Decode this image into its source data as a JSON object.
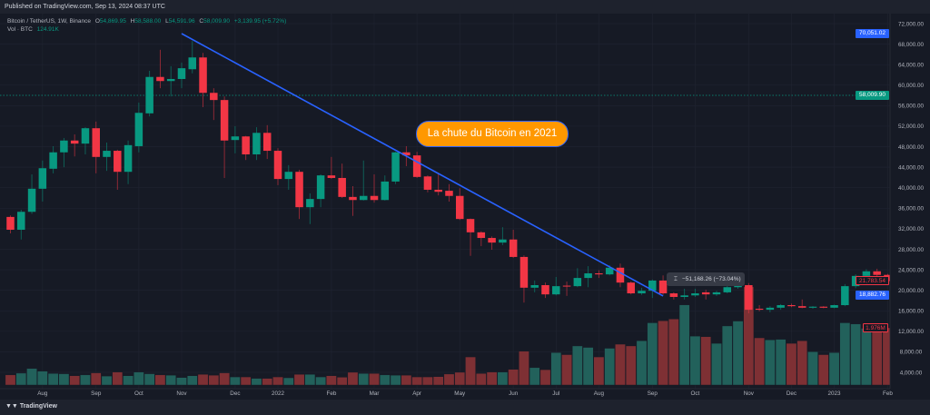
{
  "header": {
    "published": "Published on TradingView.com, Sep 13, 2024 08:37 UTC"
  },
  "legend": {
    "symbol": "Bitcoin / TetherUS, 1W, Binance",
    "o_label": "O",
    "o": "54,869.95",
    "h_label": "H",
    "h": "58,588.00",
    "l_label": "L",
    "l": "54,591.96",
    "c_label": "C",
    "c": "58,009.90",
    "change": "+3,139.95 (+5.72%)",
    "vol_label": "Vol · BTC",
    "vol": "124.91K"
  },
  "annotation": {
    "text": "La chute du Bitcoin en 2021",
    "fill": "#ff9800",
    "border": "#2962ff"
  },
  "measure": {
    "icon": "vertical-range-icon",
    "text": "−51,168.26 (−73.04%)"
  },
  "price_labels": {
    "trend_start": "70,051.02",
    "last_price": "58,009.90",
    "cursor_candle": "21,783.54",
    "trend_end": "18,882.76",
    "last_volume": "1.976M"
  },
  "footer": {
    "brand": "TradingView"
  },
  "colors": {
    "up": "#089981",
    "down": "#f23645",
    "vol_up": "#22615b",
    "vol_down": "#7e3034",
    "trendline": "#2962ff",
    "background": "#161a25"
  },
  "chart_data": {
    "type": "candlestick",
    "interval": "1W",
    "ylim": [
      4000,
      72000
    ],
    "yticks": [
      "72,000.00",
      "68,000.00",
      "64,000.00",
      "60,000.00",
      "56,000.00",
      "52,000.00",
      "48,000.00",
      "44,000.00",
      "40,000.00",
      "36,000.00",
      "32,000.00",
      "28,000.00",
      "24,000.00",
      "20,000.00",
      "16,000.00",
      "12,000.00",
      "8,000.00",
      "4,000.00"
    ],
    "xticks": [
      {
        "label": "Aug",
        "date": "2021-08-02"
      },
      {
        "label": "Sep",
        "date": "2021-09-06"
      },
      {
        "label": "Oct",
        "date": "2021-10-04"
      },
      {
        "label": "Nov",
        "date": "2021-11-01"
      },
      {
        "label": "Dec",
        "date": "2021-12-06"
      },
      {
        "label": "2022",
        "date": "2022-01-03"
      },
      {
        "label": "Feb",
        "date": "2022-02-07"
      },
      {
        "label": "Mar",
        "date": "2022-03-07"
      },
      {
        "label": "Apr",
        "date": "2022-04-04"
      },
      {
        "label": "May",
        "date": "2022-05-02"
      },
      {
        "label": "Jun",
        "date": "2022-06-06"
      },
      {
        "label": "Jul",
        "date": "2022-07-04"
      },
      {
        "label": "Aug",
        "date": "2022-08-01"
      },
      {
        "label": "Sep",
        "date": "2022-09-05"
      },
      {
        "label": "Oct",
        "date": "2022-10-03"
      },
      {
        "label": "Nov",
        "date": "2022-11-07"
      },
      {
        "label": "Dec",
        "date": "2022-12-05"
      },
      {
        "label": "2023",
        "date": "2023-01-02"
      },
      {
        "label": "Feb",
        "date": "2023-02-06"
      }
    ],
    "grid": true,
    "last_price_line": 58009.9,
    "trendline": {
      "from": {
        "date": "2021-11-01",
        "price": 70051.02
      },
      "to": {
        "date": "2022-09-12",
        "price": 18882.76
      }
    },
    "columns": [
      "date",
      "open",
      "high",
      "low",
      "close",
      "volume_M"
    ],
    "candles": [
      [
        "2021-07-12",
        34300,
        34600,
        31100,
        31800,
        0.35
      ],
      [
        "2021-07-19",
        31800,
        35700,
        29900,
        35300,
        0.41
      ],
      [
        "2021-07-26",
        35300,
        42600,
        34900,
        39800,
        0.57
      ],
      [
        "2021-08-02",
        39800,
        45300,
        37300,
        43800,
        0.48
      ],
      [
        "2021-08-09",
        43700,
        48100,
        42800,
        46900,
        0.4
      ],
      [
        "2021-08-16",
        46900,
        49700,
        44000,
        49200,
        0.39
      ],
      [
        "2021-08-23",
        49200,
        50400,
        46100,
        48600,
        0.32
      ],
      [
        "2021-08-30",
        48600,
        51800,
        46500,
        51600,
        0.35
      ],
      [
        "2021-09-06",
        51600,
        52900,
        42800,
        46000,
        0.42
      ],
      [
        "2021-09-13",
        46000,
        48800,
        43300,
        47200,
        0.31
      ],
      [
        "2021-09-20",
        47200,
        47400,
        39600,
        43100,
        0.45
      ],
      [
        "2021-09-27",
        43100,
        49200,
        40700,
        48300,
        0.32
      ],
      [
        "2021-10-04",
        48100,
        56600,
        46900,
        54600,
        0.45
      ],
      [
        "2021-10-11",
        54500,
        62800,
        53900,
        61600,
        0.39
      ],
      [
        "2021-10-18",
        61600,
        66900,
        59400,
        60800,
        0.35
      ],
      [
        "2021-10-25",
        60800,
        63700,
        57800,
        61200,
        0.34
      ],
      [
        "2021-11-01",
        61200,
        64400,
        59400,
        63300,
        0.26
      ],
      [
        "2021-11-08",
        63100,
        68600,
        62300,
        65400,
        0.32
      ],
      [
        "2021-11-15",
        65400,
        66300,
        55700,
        58500,
        0.37
      ],
      [
        "2021-11-22",
        58500,
        59400,
        53200,
        57100,
        0.34
      ],
      [
        "2021-11-29",
        57100,
        57800,
        41900,
        49200,
        0.42
      ],
      [
        "2021-12-06",
        49300,
        52000,
        46700,
        50000,
        0.28
      ],
      [
        "2021-12-13",
        50000,
        50100,
        45400,
        46500,
        0.28
      ],
      [
        "2021-12-20",
        46500,
        51800,
        45400,
        50700,
        0.23
      ],
      [
        "2021-12-27",
        50700,
        52200,
        45600,
        47200,
        0.23
      ],
      [
        "2022-01-03",
        47200,
        47700,
        40500,
        41700,
        0.28
      ],
      [
        "2022-01-10",
        41700,
        44400,
        39600,
        43100,
        0.25
      ],
      [
        "2022-01-17",
        43100,
        43500,
        33900,
        36200,
        0.37
      ],
      [
        "2022-01-24",
        36200,
        38900,
        32900,
        37800,
        0.37
      ],
      [
        "2022-01-31",
        37800,
        42600,
        36200,
        42400,
        0.28
      ],
      [
        "2022-02-07",
        42400,
        46000,
        41700,
        41900,
        0.32
      ],
      [
        "2022-02-14",
        41900,
        44700,
        38000,
        38200,
        0.27
      ],
      [
        "2022-02-21",
        38200,
        40300,
        34500,
        37600,
        0.44
      ],
      [
        "2022-02-28",
        37600,
        45300,
        37500,
        38400,
        0.4
      ],
      [
        "2022-03-07",
        38400,
        42600,
        37100,
        37600,
        0.4
      ],
      [
        "2022-03-14",
        37600,
        42400,
        37500,
        41200,
        0.35
      ],
      [
        "2022-03-21",
        41200,
        47000,
        40700,
        46900,
        0.34
      ],
      [
        "2022-03-28",
        46900,
        48100,
        44200,
        46300,
        0.34
      ],
      [
        "2022-04-04",
        46300,
        47000,
        41900,
        42100,
        0.28
      ],
      [
        "2022-04-11",
        42200,
        42400,
        39100,
        39600,
        0.28
      ],
      [
        "2022-04-18",
        39600,
        42900,
        38500,
        39200,
        0.29
      ],
      [
        "2022-04-25",
        39400,
        40700,
        37300,
        38400,
        0.38
      ],
      [
        "2022-05-02",
        38400,
        39900,
        33700,
        33900,
        0.44
      ],
      [
        "2022-05-09",
        33900,
        34000,
        26700,
        31300,
        0.97
      ],
      [
        "2022-05-16",
        31300,
        31500,
        28600,
        30200,
        0.4
      ],
      [
        "2022-05-23",
        30200,
        30500,
        27900,
        29300,
        0.45
      ],
      [
        "2022-05-30",
        29300,
        32300,
        28800,
        29900,
        0.45
      ],
      [
        "2022-06-06",
        29900,
        31800,
        26300,
        26500,
        0.54
      ],
      [
        "2022-06-13",
        26500,
        26800,
        17600,
        20500,
        1.17
      ],
      [
        "2022-06-20",
        20500,
        21900,
        19600,
        21000,
        0.6
      ],
      [
        "2022-06-27",
        21000,
        21500,
        18500,
        19200,
        0.53
      ],
      [
        "2022-07-04",
        19200,
        22600,
        19000,
        20800,
        1.12
      ],
      [
        "2022-07-11",
        20900,
        21700,
        18900,
        20800,
        1.05
      ],
      [
        "2022-07-18",
        20800,
        24300,
        20600,
        22400,
        1.35
      ],
      [
        "2022-07-25",
        22400,
        24700,
        20600,
        23300,
        1.3
      ],
      [
        "2022-08-01",
        23300,
        23900,
        22400,
        23100,
        0.97
      ],
      [
        "2022-08-08",
        23100,
        24900,
        22900,
        24400,
        1.27
      ],
      [
        "2022-08-15",
        24400,
        25200,
        20600,
        21500,
        1.41
      ],
      [
        "2022-08-22",
        21500,
        21700,
        19200,
        19400,
        1.35
      ],
      [
        "2022-08-29",
        19400,
        20500,
        19100,
        19900,
        1.53
      ],
      [
        "2022-09-05",
        19900,
        22100,
        18500,
        21900,
        2.15
      ],
      [
        "2022-09-12",
        21900,
        22900,
        19100,
        19400,
        2.22
      ],
      [
        "2022-09-19",
        19400,
        19600,
        18200,
        18700,
        2.28
      ],
      [
        "2022-09-26",
        18700,
        20300,
        18200,
        19000,
        2.77
      ],
      [
        "2022-10-03",
        19000,
        20300,
        18700,
        19400,
        1.69
      ],
      [
        "2022-10-10",
        19600,
        20100,
        18200,
        19200,
        1.67
      ],
      [
        "2022-10-17",
        19200,
        19900,
        18900,
        19600,
        1.44
      ],
      [
        "2022-10-24",
        19600,
        21200,
        19400,
        20600,
        2.04
      ],
      [
        "2022-10-31",
        20600,
        21300,
        20300,
        21000,
        2.21
      ],
      [
        "2022-11-07",
        21000,
        21400,
        15500,
        16200,
        3.39
      ],
      [
        "2022-11-14",
        16400,
        17100,
        15900,
        16200,
        1.63
      ],
      [
        "2022-11-21",
        16200,
        16900,
        15700,
        16600,
        1.56
      ],
      [
        "2022-11-28",
        16600,
        17300,
        16200,
        17100,
        1.58
      ],
      [
        "2022-12-05",
        17100,
        17400,
        16700,
        16900,
        1.44
      ],
      [
        "2022-12-12",
        16900,
        18200,
        16500,
        16600,
        1.53
      ],
      [
        "2022-12-19",
        16600,
        16900,
        16400,
        16800,
        1.15
      ],
      [
        "2022-12-26",
        16800,
        16900,
        16500,
        16600,
        1.05
      ],
      [
        "2023-01-02",
        16600,
        17200,
        16500,
        17100,
        1.12
      ],
      [
        "2023-01-09",
        17100,
        21200,
        16900,
        20800,
        2.15
      ],
      [
        "2023-01-16",
        20800,
        23100,
        20400,
        22800,
        2.11
      ],
      [
        "2023-01-23",
        22800,
        24100,
        22300,
        23700,
        1.96
      ],
      [
        "2023-01-30",
        23700,
        24200,
        22600,
        23000,
        1.96
      ],
      [
        "2023-02-06",
        23000,
        23200,
        21500,
        21783.54,
        1.976
      ]
    ]
  }
}
